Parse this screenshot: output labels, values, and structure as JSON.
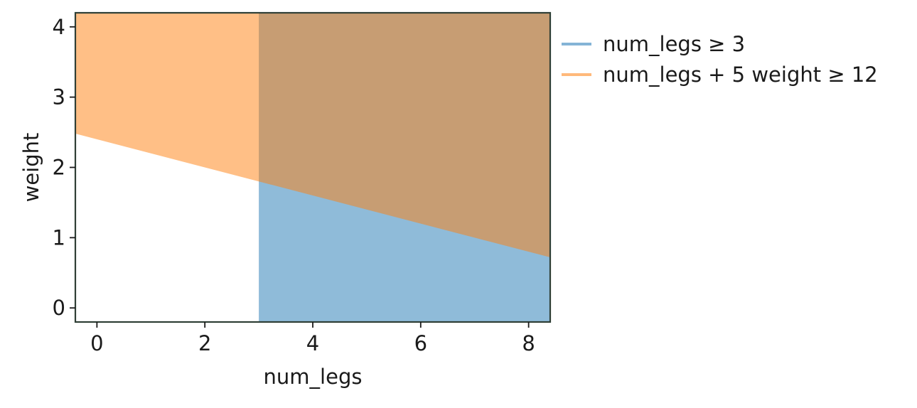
{
  "chart_data": {
    "type": "area",
    "title": "",
    "xlabel": "num_legs",
    "ylabel": "weight",
    "xlim": [
      -0.4,
      8.4
    ],
    "ylim": [
      -0.2,
      4.2
    ],
    "x_ticks": [
      0,
      2,
      4,
      6,
      8
    ],
    "y_ticks": [
      0,
      1,
      2,
      3,
      4
    ],
    "grid": false,
    "legend_position": "outside-top-right",
    "series": [
      {
        "name": "num_legs ≥ 3",
        "color": "#1f77b4",
        "region": "num_legs >= 3",
        "boundary": {
          "type": "vertical",
          "x": 3
        }
      },
      {
        "name": "num_legs + 5 weight ≥ 12",
        "color": "#ff7f0e",
        "region": "weight >= (12 - num_legs) / 5",
        "boundary": {
          "type": "line",
          "x": [
            -0.4,
            8.4
          ],
          "y": [
            2.48,
            0.72
          ]
        }
      }
    ],
    "fill_opacity": 0.5,
    "axes_edge_color": "#2f3f36"
  }
}
